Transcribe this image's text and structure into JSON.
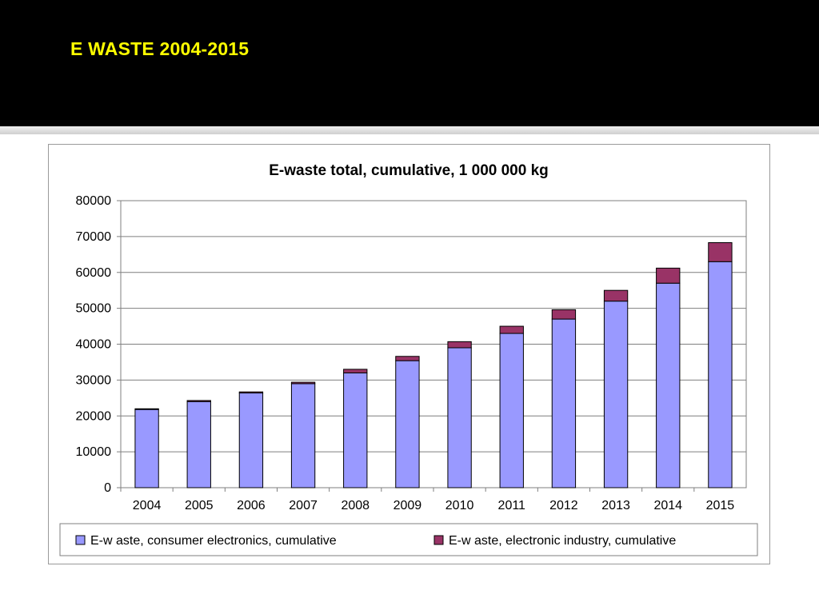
{
  "slide": {
    "title": "E WASTE 2004-2015",
    "title_color": "#FFFF00",
    "background": "#000000"
  },
  "chart_data": {
    "type": "bar",
    "stacked": true,
    "title": "E-waste total, cumulative, 1 000 000 kg",
    "categories": [
      "2004",
      "2005",
      "2006",
      "2007",
      "2008",
      "2009",
      "2010",
      "2011",
      "2012",
      "2013",
      "2014",
      "2015"
    ],
    "series": [
      {
        "name": "E-w aste, consumer electronics, cumulative",
        "color": "#9999FF",
        "values": [
          21800,
          24000,
          26400,
          29000,
          32000,
          35400,
          39000,
          43000,
          47000,
          52000,
          57000,
          63000
        ]
      },
      {
        "name": "E-w aste, electronic industry, cumulative",
        "color": "#993366",
        "values": [
          200,
          300,
          300,
          400,
          1000,
          1200,
          1700,
          2000,
          2600,
          3000,
          4200,
          5300
        ]
      }
    ],
    "yticks": [
      0,
      10000,
      20000,
      30000,
      40000,
      50000,
      60000,
      70000,
      80000
    ],
    "ylim": [
      0,
      80000
    ],
    "grid": true,
    "legend_position": "bottom"
  }
}
